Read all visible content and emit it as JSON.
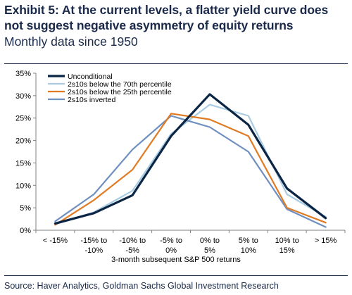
{
  "header": {
    "title": "Exhibit 5: At the current levels, a flatter yield curve does not suggest negative asymmetry of equity returns",
    "subtitle": "Monthly data since 1950"
  },
  "footer": {
    "source": "Source: Haver Analytics, Goldman Sachs Global Investment Research"
  },
  "colors": {
    "header_text": "#1b2a4a",
    "axis": "#808080"
  },
  "chart_data": {
    "type": "line",
    "title": "Exhibit 5: At the current levels, a flatter yield curve does not suggest negative asymmetry of equity returns",
    "subtitle": "Monthly data since 1950",
    "xlabel": "3-month subsequent S&P 500 returns",
    "ylabel": "",
    "categories": [
      [
        "< -15%"
      ],
      [
        "-15% to",
        "-10%"
      ],
      [
        "-10% to",
        "-5%"
      ],
      [
        "-5% to",
        "0%"
      ],
      [
        "0% to",
        "5%"
      ],
      [
        "5% to",
        "10%"
      ],
      [
        "10% to",
        "15%"
      ],
      [
        "> 15%"
      ]
    ],
    "yticks": [
      "0%",
      "5%",
      "10%",
      "15%",
      "20%",
      "25%",
      "30%",
      "35%"
    ],
    "ylim": [
      0,
      35
    ],
    "grid": false,
    "legend_position": "top-left",
    "series": [
      {
        "name": "Unconditional",
        "color": "#0b2545",
        "width": 3.2,
        "values": [
          1.5,
          3.8,
          7.8,
          21.0,
          30.3,
          23.5,
          9.3,
          2.7
        ]
      },
      {
        "name": "2s10s below the 70th percentile",
        "color": "#a9cce3",
        "width": 2.2,
        "values": [
          1.3,
          4.0,
          8.8,
          21.5,
          28.0,
          25.5,
          8.0,
          3.0
        ]
      },
      {
        "name": "2s10s below the 25th percentile",
        "color": "#e07b24",
        "width": 2.2,
        "values": [
          1.2,
          6.7,
          13.5,
          26.0,
          24.7,
          21.0,
          5.0,
          1.7
        ]
      },
      {
        "name": "2s10s inverted",
        "color": "#6e8fbf",
        "width": 2.2,
        "values": [
          2.0,
          8.0,
          18.0,
          25.5,
          23.0,
          17.5,
          4.7,
          0.7
        ]
      }
    ]
  }
}
